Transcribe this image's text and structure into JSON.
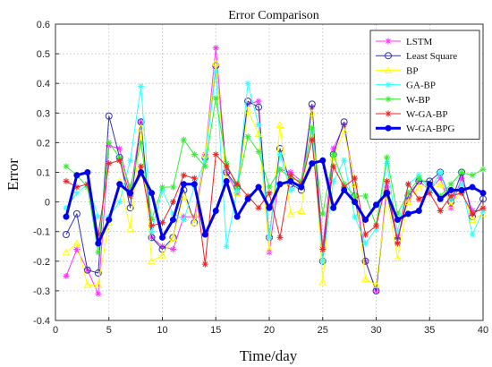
{
  "chart_data": {
    "type": "line",
    "title": "Error Comparison",
    "xlabel": "Time/day",
    "ylabel": "Error",
    "xlim": [
      0,
      40
    ],
    "ylim": [
      -0.4,
      0.6
    ],
    "xticks": [
      0,
      5,
      10,
      15,
      20,
      25,
      30,
      35,
      40
    ],
    "yticks": [
      -0.4,
      -0.3,
      -0.2,
      -0.1,
      0,
      0.1,
      0.2,
      0.3,
      0.4,
      0.5,
      0.6
    ],
    "grid": true,
    "legend_position": "top-right",
    "x": [
      1,
      2,
      3,
      4,
      5,
      6,
      7,
      8,
      9,
      10,
      11,
      12,
      13,
      14,
      15,
      16,
      17,
      18,
      19,
      20,
      21,
      22,
      23,
      24,
      25,
      26,
      27,
      28,
      29,
      30,
      31,
      32,
      33,
      34,
      35,
      36,
      37,
      38,
      39,
      40
    ],
    "series": [
      {
        "name": "LSTM",
        "color": "#ff33ff",
        "marker": "star",
        "width": 1,
        "values": [
          -0.25,
          -0.16,
          -0.23,
          -0.31,
          0.19,
          0.18,
          0.03,
          0.27,
          -0.12,
          -0.15,
          -0.16,
          -0.05,
          -0.05,
          0.16,
          0.52,
          0.1,
          0.03,
          0.33,
          0.34,
          -0.17,
          0.11,
          0.1,
          0.07,
          0.32,
          -0.15,
          0.18,
          0.26,
          0.06,
          -0.2,
          -0.3,
          0.05,
          -0.12,
          0.01,
          0.07,
          0.04,
          0.08,
          -0.02,
          0.08,
          -0.03,
          -0.03
        ]
      },
      {
        "name": "Least Square",
        "color": "#3333aa",
        "marker": "circle",
        "width": 1,
        "values": [
          -0.11,
          -0.04,
          -0.23,
          -0.24,
          0.29,
          0.15,
          -0.02,
          0.27,
          -0.12,
          -0.16,
          -0.12,
          0.04,
          -0.07,
          0.15,
          0.46,
          0.1,
          0.05,
          0.34,
          0.32,
          -0.12,
          0.18,
          0.06,
          0.04,
          0.33,
          -0.2,
          0.16,
          0.27,
          0.02,
          -0.2,
          -0.3,
          0.03,
          -0.13,
          0.02,
          0.07,
          0.07,
          0.1,
          0.0,
          0.1,
          -0.05,
          0.01
        ]
      },
      {
        "name": "BP",
        "color": "#ffff00",
        "marker": "triangle",
        "width": 1,
        "values": [
          -0.17,
          -0.14,
          -0.28,
          -0.28,
          -0.07,
          0.07,
          -0.09,
          0.25,
          -0.2,
          -0.18,
          -0.12,
          0.02,
          -0.07,
          0.16,
          0.47,
          0.06,
          0.03,
          0.31,
          0.23,
          -0.16,
          0.26,
          -0.04,
          -0.03,
          0.3,
          -0.27,
          0.15,
          0.24,
          0.06,
          -0.26,
          -0.28,
          0.02,
          -0.19,
          0.0,
          0.05,
          0.06,
          0.06,
          -0.01,
          0.04,
          -0.06,
          -0.04
        ]
      },
      {
        "name": "GA-BP",
        "color": "#33ffff",
        "marker": "star",
        "width": 1,
        "values": [
          -0.02,
          0.03,
          0.06,
          -0.05,
          -0.05,
          0.0,
          0.14,
          0.39,
          -0.1,
          0.04,
          -0.04,
          -0.06,
          0.05,
          0.14,
          0.44,
          -0.15,
          0.04,
          0.4,
          0.26,
          -0.12,
          0.16,
          0.04,
          0.06,
          0.24,
          -0.2,
          0.07,
          0.14,
          -0.05,
          -0.14,
          -0.09,
          0.13,
          -0.1,
          0.06,
          0.09,
          0.04,
          0.1,
          0.01,
          0.06,
          -0.11,
          -0.03
        ]
      },
      {
        "name": "W-BP",
        "color": "#33ee33",
        "marker": "star",
        "width": 1,
        "values": [
          0.12,
          0.09,
          0.05,
          -0.17,
          0.2,
          0.15,
          0.05,
          0.2,
          -0.06,
          0.05,
          0.05,
          0.21,
          0.16,
          0.12,
          0.35,
          0.13,
          0.05,
          0.22,
          0.17,
          0.05,
          0.11,
          0.08,
          0.07,
          0.25,
          -0.04,
          0.16,
          0.06,
          0.02,
          0.02,
          -0.08,
          0.15,
          -0.04,
          0.03,
          0.08,
          0.06,
          0.02,
          0.06,
          0.1,
          0.09,
          0.11
        ]
      },
      {
        "name": "W-GA-BP",
        "color": "#ee2222",
        "marker": "star",
        "width": 1,
        "values": [
          0.07,
          0.05,
          0.06,
          -0.11,
          0.13,
          0.14,
          0.02,
          0.12,
          -0.08,
          -0.07,
          0.0,
          0.09,
          0.08,
          -0.21,
          0.16,
          0.12,
          0.06,
          0.02,
          -0.02,
          0.03,
          -0.12,
          0.09,
          0.06,
          0.21,
          -0.16,
          0.12,
          0.05,
          0.08,
          -0.11,
          -0.08,
          0.07,
          -0.14,
          0.06,
          0.01,
          0.03,
          -0.03,
          0.02,
          0.03,
          -0.04,
          -0.02
        ]
      },
      {
        "name": "W-GA-BPG",
        "color": "#0000ee",
        "marker": "dot",
        "width": 3,
        "values": [
          -0.05,
          0.09,
          0.1,
          -0.14,
          -0.06,
          0.06,
          0.03,
          0.1,
          0.03,
          -0.12,
          -0.06,
          0.06,
          0.06,
          -0.11,
          -0.03,
          0.07,
          -0.05,
          0.01,
          0.05,
          -0.02,
          0.06,
          0.07,
          0.05,
          0.13,
          0.14,
          -0.02,
          0.04,
          0.0,
          -0.06,
          -0.01,
          0.03,
          -0.06,
          -0.04,
          -0.03,
          0.06,
          0.01,
          0.04,
          0.04,
          0.05,
          0.03
        ]
      }
    ]
  }
}
